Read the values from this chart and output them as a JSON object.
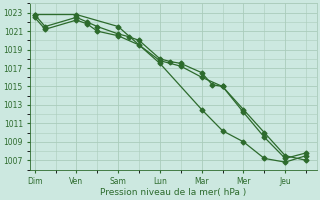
{
  "bg_color": "#cce8e0",
  "grid_color": "#aaccbb",
  "line_color": "#2d6b2d",
  "marker_color": "#2d6b2d",
  "xlabel": "Pression niveau de la mer( hPa )",
  "xlabel_color": "#2d6b2d",
  "tick_color": "#2d6b2d",
  "ylim": [
    1006,
    1024
  ],
  "yticks": [
    1007,
    1009,
    1011,
    1013,
    1015,
    1017,
    1019,
    1021,
    1023
  ],
  "day_labels": [
    "Dim",
    "Ven",
    "Sam",
    "Lun",
    "Mar",
    "Mer",
    "Jeu"
  ],
  "day_positions": [
    0,
    2,
    4,
    6,
    8,
    10,
    12
  ],
  "series1_x": [
    0,
    0.5,
    2,
    2.5,
    3,
    4,
    4.5,
    5,
    6,
    6.5,
    7,
    8,
    8.5,
    9,
    10,
    11,
    12,
    13
  ],
  "series1_y": [
    1022.8,
    1021.5,
    1022.5,
    1022.0,
    1021.5,
    1020.7,
    1020.4,
    1020.0,
    1018.0,
    1017.7,
    1017.5,
    1016.5,
    1015.2,
    1015.0,
    1012.5,
    1010.0,
    1007.5,
    1007.0
  ],
  "series2_x": [
    0,
    0.5,
    2,
    2.5,
    3,
    4,
    5,
    6,
    7,
    8,
    9,
    10,
    11,
    12,
    13
  ],
  "series2_y": [
    1022.5,
    1021.2,
    1022.2,
    1021.8,
    1021.0,
    1020.5,
    1019.5,
    1017.8,
    1017.2,
    1016.0,
    1015.0,
    1012.2,
    1009.5,
    1007.2,
    1007.8
  ],
  "series3_x": [
    0,
    2,
    4,
    6,
    8,
    9,
    10,
    11,
    12,
    13
  ],
  "series3_y": [
    1022.8,
    1022.8,
    1021.5,
    1017.5,
    1012.5,
    1010.2,
    1009.0,
    1007.2,
    1006.8,
    1007.5
  ],
  "xmin": -0.2,
  "xmax": 13.5
}
